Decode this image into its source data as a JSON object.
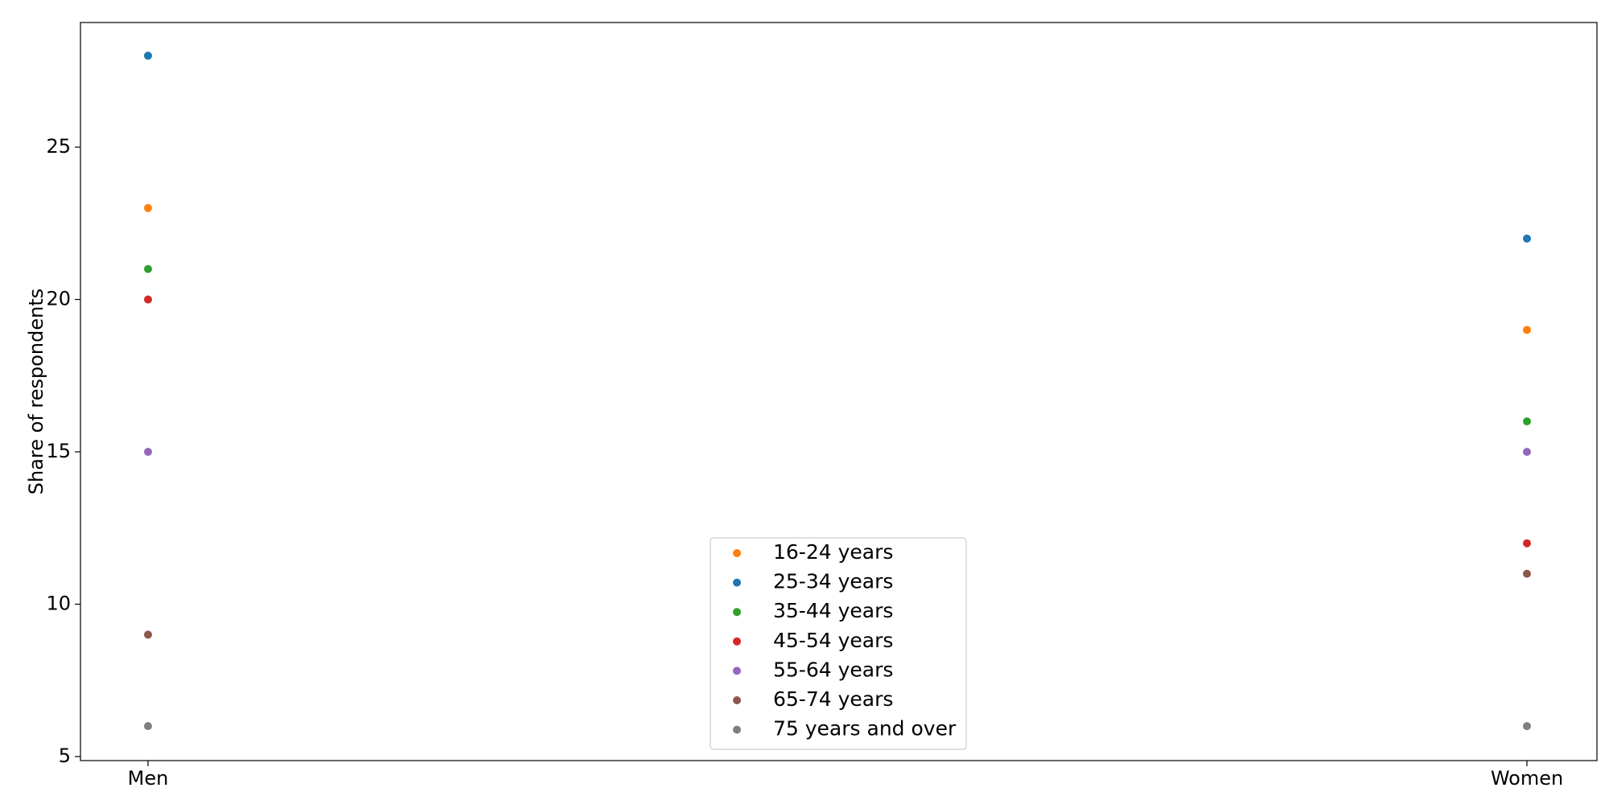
{
  "chart_data": {
    "type": "scatter",
    "title": "",
    "xlabel": "",
    "ylabel": "Share of respondents",
    "categories": [
      "Men",
      "Women"
    ],
    "ylim": [
      5,
      29
    ],
    "yticks": [
      5,
      10,
      15,
      20,
      25
    ],
    "grid": false,
    "legend_position": "bottom-center",
    "series": [
      {
        "name": "16-24 years",
        "color": "#ff7f0e",
        "values": [
          23,
          19
        ]
      },
      {
        "name": "25-34 years",
        "color": "#1f77b4",
        "values": [
          28,
          22
        ]
      },
      {
        "name": "35-44 years",
        "color": "#2ca02c",
        "values": [
          21,
          16
        ]
      },
      {
        "name": "45-54 years",
        "color": "#d62728",
        "values": [
          20,
          12
        ]
      },
      {
        "name": "55-64 years",
        "color": "#9467bd",
        "values": [
          15,
          15
        ]
      },
      {
        "name": "65-74 years",
        "color": "#8c564b",
        "values": [
          9,
          11
        ]
      },
      {
        "name": "75 years and over",
        "color": "#7f7f7f",
        "values": [
          6,
          6
        ]
      }
    ]
  }
}
